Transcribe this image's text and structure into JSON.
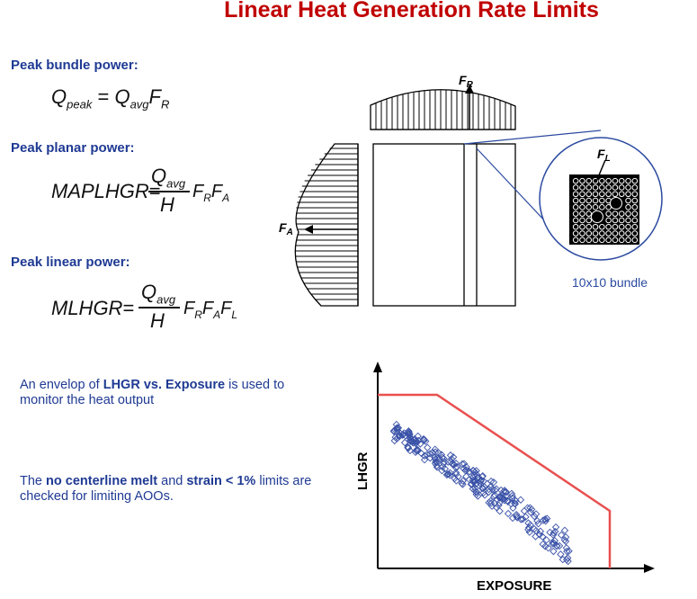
{
  "title": "Linear Heat Generation Rate Limits",
  "sections": {
    "bundle": {
      "heading": "Peak bundle power:"
    },
    "planar": {
      "heading": "Peak planar power:"
    },
    "linear": {
      "heading": "Peak linear power:"
    }
  },
  "equations": {
    "q": "Q",
    "peak_sub": "peak",
    "avg_sub": "avg",
    "f": "F",
    "r_sub": "R",
    "a_sub": "A",
    "l_sub": "L",
    "eq_sign": "=",
    "maplhgr": "MAPLHGR",
    "mlhgr": "MLHGR",
    "h": "H"
  },
  "diagram": {
    "fr_label": "F",
    "fr_sub": "R",
    "fa_label": "F",
    "fa_sub": "A",
    "fl_label": "F",
    "fl_sub": "L",
    "bundle_caption": "10x10 bundle"
  },
  "notes": {
    "envelope": {
      "pre": "An envelop of ",
      "bold": "LHGR vs. Exposure",
      "post": " is used to monitor the heat output"
    },
    "limits": {
      "pre": "The ",
      "bold1": "no centerline melt",
      "mid": " and ",
      "bold2": "strain < 1%",
      "post": " limits are checked for limiting AOOs."
    }
  },
  "chart": {
    "xlabel": "EXPOSURE",
    "ylabel": "LHGR",
    "limit_color": "#e8504f",
    "data_color": "#3a52a8"
  }
}
